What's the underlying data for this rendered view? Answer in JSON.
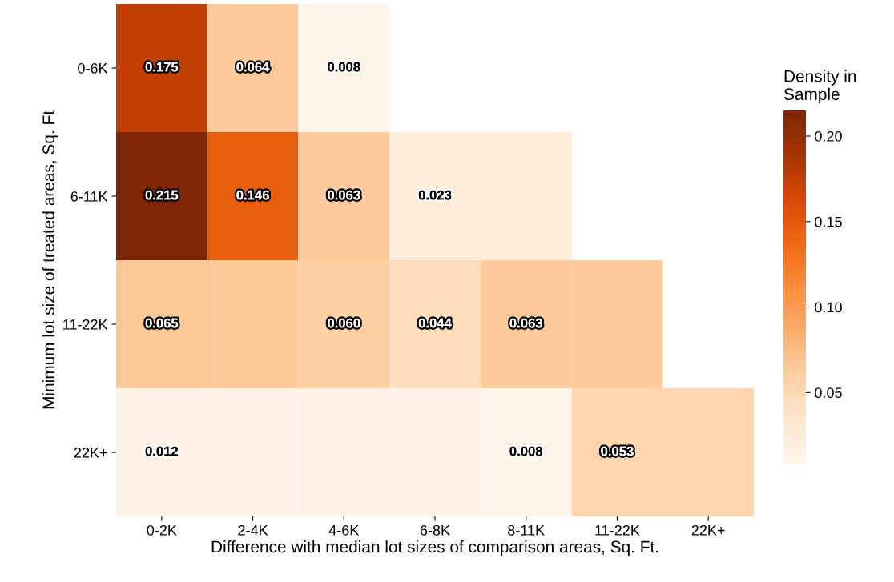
{
  "chart_data": {
    "type": "heatmap",
    "xlabel": "Difference with median lot sizes of comparison areas, Sq. Ft.",
    "ylabel": "Minimum lot size of treated areas, Sq. Ft",
    "clabel": "Density in\nSample",
    "categories": [
      "0-2K",
      "2-4K",
      "4-6K",
      "6-8K",
      "8-11K",
      "11-22K",
      "22K+"
    ],
    "y_categories": [
      "0-6K",
      "6-11K",
      "11-22K",
      "22K+"
    ],
    "cells": [
      [
        0.175,
        0.064,
        0.008,
        null,
        null,
        null,
        null
      ],
      [
        0.215,
        0.146,
        0.063,
        0.023,
        0.023,
        null,
        null
      ],
      [
        0.065,
        0.065,
        0.06,
        0.044,
        0.063,
        0.063,
        null
      ],
      [
        0.012,
        0.012,
        0.012,
        0.012,
        0.008,
        0.053,
        0.053
      ]
    ],
    "cell_labels": [
      [
        "0.175",
        "0.064",
        "0.008",
        null,
        null,
        null,
        null
      ],
      [
        "0.215",
        "0.146",
        "0.063",
        "0.023",
        null,
        null,
        null
      ],
      [
        "0.065",
        null,
        "0.060",
        "0.044",
        "0.063",
        null,
        null
      ],
      [
        "0.012",
        null,
        null,
        null,
        "0.008",
        "0.053",
        null
      ]
    ],
    "clim": [
      0.008,
      0.215
    ],
    "cticks": [
      {
        "value": 0.05,
        "label": "0.05"
      },
      {
        "value": 0.1,
        "label": "0.10"
      },
      {
        "value": 0.15,
        "label": "0.15"
      },
      {
        "value": 0.2,
        "label": "0.20"
      }
    ]
  }
}
